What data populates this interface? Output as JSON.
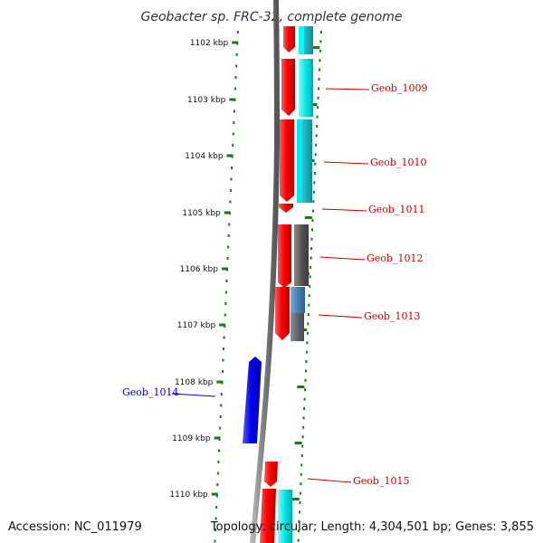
{
  "title": "Geobacter sp. FRC-32, complete genome",
  "accession": "Accession: NC_011979",
  "topology": "Topology: circular; Length: 4,304,501 bp; Genes: 3,855",
  "colors": {
    "backbone": "#7a7a7a",
    "tick": "#1a7a1a",
    "forward_label": "#cc0000",
    "reverse_label": "#0000cc",
    "cds_forward": "#ff0000",
    "cds_reverse": "#0000ee"
  },
  "ticks": [
    {
      "label": "1102 kbp"
    },
    {
      "label": "1103 kbp"
    },
    {
      "label": "1104 kbp"
    },
    {
      "label": "1105 kbp"
    },
    {
      "label": "1106 kbp"
    },
    {
      "label": "1107 kbp"
    },
    {
      "label": "1108 kbp"
    },
    {
      "label": "1109 kbp"
    },
    {
      "label": "1110 kbp"
    }
  ],
  "genes": [
    {
      "name": "Geob_1009",
      "strand": "+",
      "color": "#cc0000"
    },
    {
      "name": "Geob_1010",
      "strand": "+",
      "color": "#cc0000"
    },
    {
      "name": "Geob_1011",
      "strand": "+",
      "color": "#cc0000"
    },
    {
      "name": "Geob_1012",
      "strand": "+",
      "color": "#cc0000"
    },
    {
      "name": "Geob_1013",
      "strand": "+",
      "color": "#cc0000"
    },
    {
      "name": "Geob_1014",
      "strand": "-",
      "color": "#0000cc"
    },
    {
      "name": "Geob_1015",
      "strand": "+",
      "color": "#cc0000"
    }
  ]
}
